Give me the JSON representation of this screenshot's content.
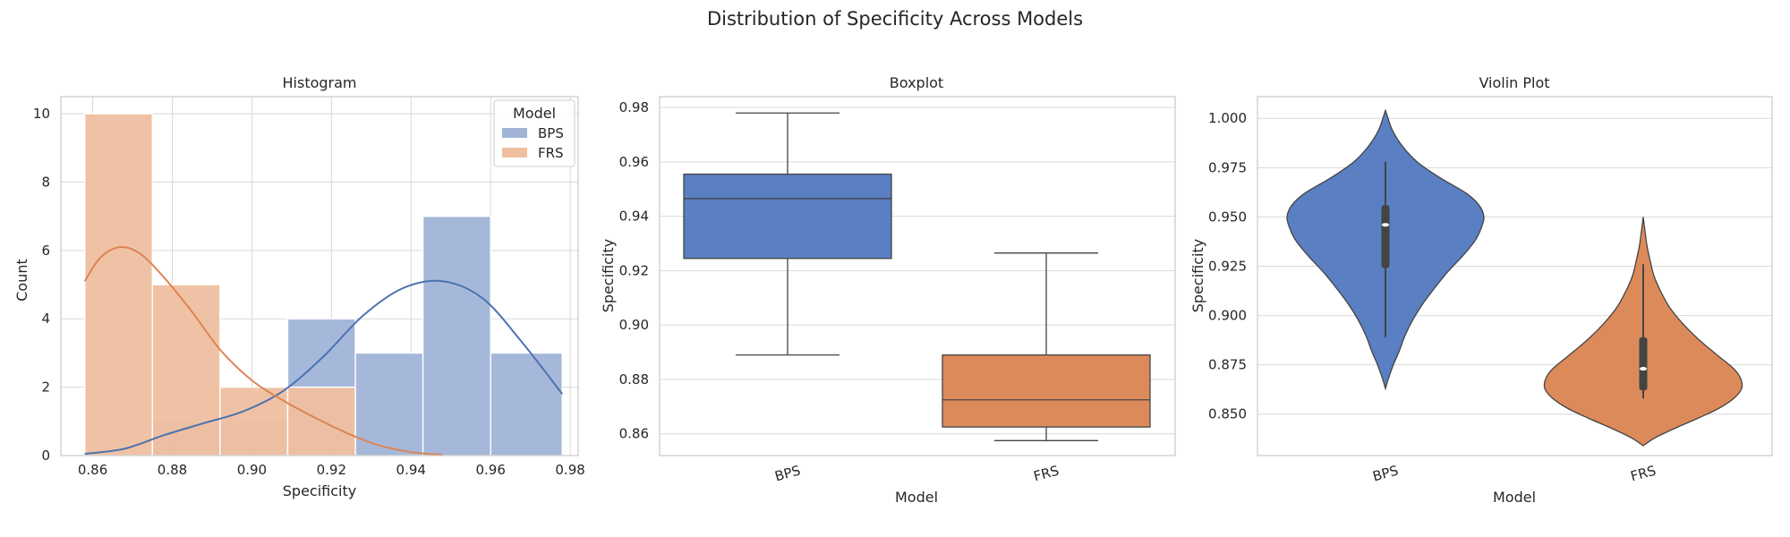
{
  "figure": {
    "title": "Distribution of Specificity Across Models"
  },
  "colors": {
    "BPS_hist": "#a1b4d8",
    "FRS_hist": "#efbfa0",
    "BPS_kde": "#4c72b0",
    "FRS_kde": "#dd8452",
    "BPS_box": "#5a7fc2",
    "FRS_box": "#dd8a5b",
    "grid": "#d9d9d9",
    "frame": "#cccccc",
    "median": "#444444"
  },
  "chart_data": [
    {
      "type": "histogram",
      "title": "Histogram",
      "xlabel": "Specificity",
      "ylabel": "Count",
      "xlim": [
        0.852,
        0.982
      ],
      "ylim": [
        0,
        10.5
      ],
      "xticks": [
        "0.86",
        "0.88",
        "0.90",
        "0.92",
        "0.94",
        "0.96",
        "0.98"
      ],
      "yticks": [
        "0",
        "2",
        "4",
        "6",
        "8",
        "10"
      ],
      "grid": true,
      "legend": {
        "title": "Model",
        "placement": "top-right",
        "entries": [
          "BPS",
          "FRS"
        ]
      },
      "bin_edges": [
        0.858,
        0.875,
        0.892,
        0.909,
        0.926,
        0.943,
        0.96,
        0.978
      ],
      "series": [
        {
          "name": "BPS",
          "counts": [
            0,
            1,
            1,
            4,
            3,
            7,
            3
          ],
          "kde": {
            "x": [
              0.858,
              0.868,
              0.878,
              0.888,
              0.898,
              0.908,
              0.918,
              0.928,
              0.938,
              0.948,
              0.958,
              0.968,
              0.978
            ],
            "y": [
              0.05,
              0.2,
              0.6,
              0.95,
              1.3,
              1.9,
              2.9,
              4.1,
              4.9,
              5.1,
              4.6,
              3.3,
              1.8
            ]
          }
        },
        {
          "name": "FRS",
          "counts": [
            10,
            5,
            2,
            2,
            0,
            0,
            0
          ],
          "kde": {
            "x": [
              0.858,
              0.862,
              0.867,
              0.872,
              0.878,
              0.885,
              0.892,
              0.9,
              0.908,
              0.916,
              0.925,
              0.932,
              0.94,
              0.948
            ],
            "y": [
              5.1,
              5.8,
              6.1,
              5.9,
              5.2,
              4.2,
              3.1,
              2.2,
              1.6,
              1.1,
              0.6,
              0.3,
              0.1,
              0.02
            ]
          }
        }
      ]
    },
    {
      "type": "boxplot",
      "title": "Boxplot",
      "xlabel": "Model",
      "ylabel": "Specificity",
      "categories": [
        "BPS",
        "FRS"
      ],
      "ylim": [
        0.852,
        0.984
      ],
      "yticks": [
        "0.86",
        "0.88",
        "0.90",
        "0.92",
        "0.94",
        "0.96",
        "0.98"
      ],
      "grid": true,
      "boxes": [
        {
          "name": "BPS",
          "whisker_low": 0.889,
          "q1": 0.9245,
          "median": 0.9465,
          "q3": 0.9555,
          "whisker_high": 0.978
        },
        {
          "name": "FRS",
          "whisker_low": 0.8575,
          "q1": 0.8625,
          "median": 0.8725,
          "q3": 0.889,
          "whisker_high": 0.9265
        }
      ]
    },
    {
      "type": "violin",
      "title": "Violin Plot",
      "xlabel": "Model",
      "ylabel": "Specificity",
      "categories": [
        "BPS",
        "FRS"
      ],
      "ylim": [
        0.829,
        1.011
      ],
      "yticks": [
        "0.850",
        "0.875",
        "0.900",
        "0.925",
        "0.950",
        "0.975",
        "1.000"
      ],
      "grid": true,
      "violins": [
        {
          "name": "BPS",
          "profile_y": [
            0.863,
            0.868,
            0.875,
            0.882,
            0.89,
            0.898,
            0.906,
            0.914,
            0.922,
            0.93,
            0.938,
            0.944,
            0.95,
            0.956,
            0.962,
            0.97,
            0.978,
            0.986,
            0.994,
            1.001,
            1.004
          ],
          "profile_halfwidth": [
            0.0,
            0.03,
            0.08,
            0.14,
            0.2,
            0.28,
            0.38,
            0.5,
            0.63,
            0.78,
            0.91,
            0.97,
            1.0,
            0.95,
            0.82,
            0.55,
            0.32,
            0.17,
            0.07,
            0.02,
            0.0
          ],
          "q1": 0.924,
          "median": 0.946,
          "q3": 0.956,
          "whisker_low": 0.889,
          "whisker_high": 0.978
        },
        {
          "name": "FRS",
          "profile_y": [
            0.834,
            0.838,
            0.843,
            0.848,
            0.853,
            0.858,
            0.863,
            0.868,
            0.873,
            0.88,
            0.888,
            0.896,
            0.904,
            0.912,
            0.92,
            0.928,
            0.935,
            0.942,
            0.948,
            0.95
          ],
          "profile_halfwidth": [
            0.0,
            0.12,
            0.33,
            0.56,
            0.77,
            0.92,
            1.0,
            0.99,
            0.92,
            0.75,
            0.56,
            0.4,
            0.27,
            0.18,
            0.11,
            0.07,
            0.04,
            0.02,
            0.005,
            0.0
          ],
          "q1": 0.862,
          "median": 0.873,
          "q3": 0.889,
          "whisker_low": 0.858,
          "whisker_high": 0.926
        }
      ]
    }
  ]
}
